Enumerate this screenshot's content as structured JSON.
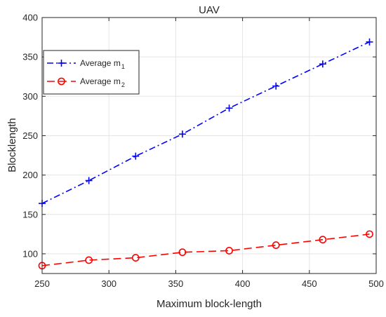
{
  "chart_data": {
    "type": "line",
    "title": "UAV",
    "xlabel": "Maximum block-length",
    "ylabel": "Blocklength",
    "xlim": [
      250,
      500
    ],
    "ylim": [
      75,
      400
    ],
    "xticks": [
      250,
      300,
      350,
      400,
      450,
      500
    ],
    "yticks": [
      100,
      150,
      200,
      250,
      300,
      350,
      400
    ],
    "grid": true,
    "legend_position": "top-left",
    "series": [
      {
        "name": "Average m",
        "name_subscript": "1",
        "color": "#0000ff",
        "line_style": "dash-dot",
        "marker": "plus",
        "x": [
          250,
          285,
          320,
          355,
          390,
          425,
          460,
          495
        ],
        "y": [
          164,
          193,
          224,
          252,
          285,
          313,
          341,
          369
        ]
      },
      {
        "name": "Average m",
        "name_subscript": "2",
        "color": "#ff0000",
        "line_style": "dashed",
        "marker": "circle",
        "x": [
          250,
          285,
          320,
          355,
          390,
          425,
          460,
          495
        ],
        "y": [
          85,
          92,
          95,
          102,
          104,
          111,
          118,
          125
        ]
      }
    ]
  }
}
